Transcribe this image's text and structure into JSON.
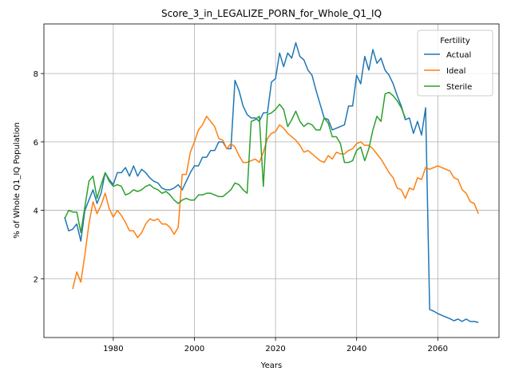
{
  "chart_data": {
    "type": "line",
    "title": "Score_3_in_LEGALIZE_PORN_for_Whole_Q1_IQ",
    "x_label": "Years",
    "y_label": "% of Whole Q1_IQ Population",
    "legend_title": "Fertility",
    "legend_loc": "upper right",
    "grid": true,
    "x": [
      1968,
      1969,
      1970,
      1971,
      1972,
      1973,
      1974,
      1975,
      1976,
      1977,
      1978,
      1979,
      1980,
      1981,
      1982,
      1983,
      1984,
      1985,
      1986,
      1987,
      1988,
      1989,
      1990,
      1991,
      1992,
      1993,
      1994,
      1995,
      1996,
      1997,
      1998,
      1999,
      2000,
      2001,
      2002,
      2003,
      2004,
      2005,
      2006,
      2007,
      2008,
      2009,
      2010,
      2011,
      2012,
      2013,
      2014,
      2015,
      2016,
      2017,
      2018,
      2019,
      2020,
      2021,
      2022,
      2023,
      2024,
      2025,
      2026,
      2027,
      2028,
      2029,
      2030,
      2031,
      2032,
      2033,
      2034,
      2035,
      2036,
      2037,
      2038,
      2039,
      2040,
      2041,
      2042,
      2043,
      2044,
      2045,
      2046,
      2047,
      2048,
      2049,
      2050,
      2051,
      2052,
      2053,
      2054,
      2055,
      2056,
      2057,
      2058,
      2059,
      2060,
      2061,
      2062,
      2063,
      2064,
      2065,
      2066,
      2067,
      2068,
      2069,
      2070
    ],
    "series": [
      {
        "name": "Actual",
        "color": "#1f77b4",
        "values": [
          3.8,
          3.4,
          3.45,
          3.6,
          3.1,
          4.0,
          4.3,
          4.6,
          4.2,
          4.5,
          5.1,
          4.9,
          4.75,
          5.1,
          5.1,
          5.25,
          5.0,
          5.3,
          5.0,
          5.2,
          5.1,
          4.95,
          4.85,
          4.8,
          4.65,
          4.6,
          4.6,
          4.65,
          4.75,
          4.6,
          4.85,
          5.1,
          5.3,
          5.3,
          5.55,
          5.55,
          5.75,
          5.75,
          6.0,
          6.0,
          5.8,
          5.8,
          7.8,
          7.5,
          7.05,
          6.8,
          6.7,
          6.7,
          6.6,
          6.85,
          6.85,
          7.75,
          7.85,
          8.6,
          8.2,
          8.6,
          8.45,
          8.9,
          8.5,
          8.4,
          8.1,
          7.95,
          7.5,
          7.1,
          6.7,
          6.65,
          6.35,
          6.4,
          6.45,
          6.5,
          7.05,
          7.05,
          7.95,
          7.7,
          8.5,
          8.1,
          8.7,
          8.3,
          8.45,
          8.1,
          7.95,
          7.7,
          7.35,
          7.05,
          6.65,
          6.7,
          6.25,
          6.6,
          6.2,
          7.0,
          1.1,
          1.05,
          0.98,
          0.93,
          0.88,
          0.83,
          0.77,
          0.82,
          0.75,
          0.82,
          0.75,
          0.75,
          0.72
        ]
      },
      {
        "name": "Ideal",
        "color": "#ff7f0e",
        "values": [
          null,
          null,
          1.7,
          2.2,
          1.9,
          2.7,
          3.6,
          4.25,
          3.9,
          4.15,
          4.5,
          4.05,
          3.8,
          4.0,
          3.85,
          3.65,
          3.4,
          3.4,
          3.2,
          3.35,
          3.6,
          3.75,
          3.7,
          3.75,
          3.6,
          3.6,
          3.5,
          3.3,
          3.5,
          5.05,
          5.05,
          5.7,
          6.0,
          6.35,
          6.5,
          6.75,
          6.6,
          6.45,
          6.1,
          6.05,
          5.8,
          5.95,
          5.85,
          5.6,
          5.4,
          5.4,
          5.45,
          5.5,
          5.4,
          5.7,
          6.1,
          6.25,
          6.3,
          6.5,
          6.4,
          6.25,
          6.15,
          6.05,
          5.9,
          5.7,
          5.75,
          5.65,
          5.55,
          5.45,
          5.4,
          5.6,
          5.5,
          5.7,
          5.65,
          5.65,
          5.75,
          5.8,
          5.95,
          6.0,
          5.9,
          5.9,
          5.8,
          5.65,
          5.5,
          5.3,
          5.1,
          4.95,
          4.65,
          4.6,
          4.35,
          4.65,
          4.6,
          4.95,
          4.9,
          5.25,
          5.2,
          5.25,
          5.3,
          5.25,
          5.2,
          5.15,
          4.95,
          4.9,
          4.6,
          4.5,
          4.25,
          4.2,
          3.9
        ]
      },
      {
        "name": "Sterile",
        "color": "#2ca02c",
        "values": [
          3.75,
          4.0,
          3.95,
          3.95,
          3.35,
          4.1,
          4.85,
          5.0,
          4.35,
          4.75,
          5.1,
          4.85,
          4.7,
          4.75,
          4.7,
          4.45,
          4.5,
          4.6,
          4.55,
          4.6,
          4.7,
          4.75,
          4.65,
          4.6,
          4.5,
          4.55,
          4.45,
          4.3,
          4.2,
          4.3,
          4.35,
          4.3,
          4.3,
          4.45,
          4.45,
          4.5,
          4.5,
          4.45,
          4.4,
          4.4,
          4.5,
          4.6,
          4.8,
          4.75,
          4.6,
          4.5,
          6.6,
          6.65,
          6.75,
          4.7,
          6.8,
          6.85,
          6.95,
          7.1,
          6.95,
          6.45,
          6.65,
          6.9,
          6.6,
          6.45,
          6.55,
          6.5,
          6.35,
          6.35,
          6.7,
          6.55,
          6.15,
          6.15,
          5.95,
          5.4,
          5.4,
          5.45,
          5.75,
          5.85,
          5.45,
          5.8,
          6.35,
          6.75,
          6.6,
          7.4,
          7.45,
          7.35,
          7.2,
          7.0,
          6.7,
          null,
          null,
          null,
          null,
          null,
          null,
          null,
          null,
          null,
          null,
          null,
          null,
          null,
          null,
          null,
          null,
          null,
          null
        ]
      }
    ],
    "xlim": [
      1962.9,
      2075.1
    ],
    "ylim": [
      0.28,
      9.45
    ],
    "xticks": [
      1980,
      2000,
      2020,
      2040,
      2060
    ],
    "yticks": [
      2,
      4,
      6,
      8
    ]
  }
}
